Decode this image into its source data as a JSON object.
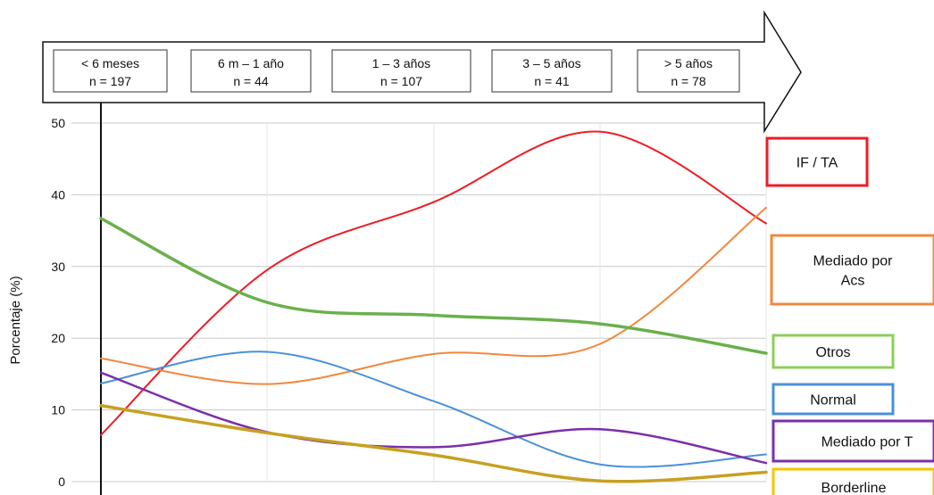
{
  "chart_data": {
    "type": "line",
    "ylabel": "Porcentaje (%)",
    "ylim": [
      0,
      50
    ],
    "yticks": [
      0,
      10,
      20,
      30,
      40,
      50
    ],
    "grid": true,
    "x": [
      0,
      1,
      2,
      3,
      4
    ],
    "categories": [
      {
        "label": "< 6 meses",
        "n": "n = 197"
      },
      {
        "label": "6 m – 1 año",
        "n": "n = 44"
      },
      {
        "label": "1 – 3 años",
        "n": "n = 107"
      },
      {
        "label": "3 – 5 años",
        "n": "n = 41"
      },
      {
        "label": "> 5 años",
        "n": "n = 78"
      }
    ],
    "series": [
      {
        "name": "IF / TA",
        "color": "#ee1c25",
        "values": [
          6.5,
          29.5,
          39.0,
          48.8,
          36.0
        ]
      },
      {
        "name": "Mediado por Acs",
        "color": "#f0883e",
        "values": [
          17.2,
          13.6,
          17.8,
          19.2,
          38.2
        ]
      },
      {
        "name": "Otros",
        "color": "#6ab04c",
        "values": [
          36.7,
          25.0,
          23.2,
          22.0,
          17.9
        ]
      },
      {
        "name": "Normal",
        "color": "#4a90d9",
        "values": [
          13.7,
          18.1,
          11.2,
          2.4,
          3.8
        ]
      },
      {
        "name": "Mediado por T",
        "color": "#7b2fa8",
        "values": [
          15.2,
          6.9,
          4.8,
          7.3,
          2.6
        ]
      },
      {
        "name": "Borderline",
        "color": "#c8a020",
        "values": [
          10.6,
          6.8,
          3.7,
          0.1,
          1.3
        ]
      }
    ],
    "legend": [
      {
        "label": "IF / TA",
        "border": "#ee1c25"
      },
      {
        "label": "Mediado por Acs",
        "border": "#f0883e"
      },
      {
        "label": "Otros",
        "border": "#8ccf5a"
      },
      {
        "label": "Normal",
        "border": "#4a90d9"
      },
      {
        "label": "Mediado por T",
        "border": "#7b2fa8"
      },
      {
        "label": "Borderline",
        "border": "#f5c400"
      }
    ]
  }
}
